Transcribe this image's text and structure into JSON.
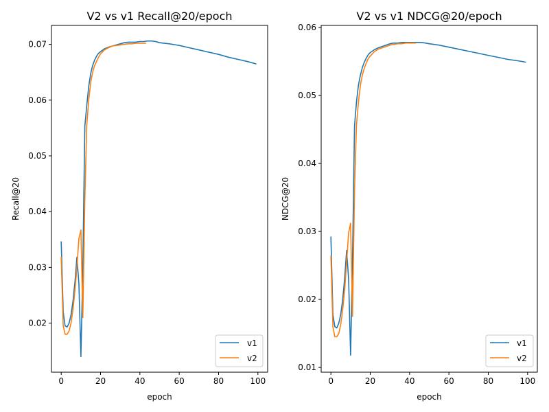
{
  "chart_data": [
    {
      "type": "line",
      "title": "V2 vs v1 Recall@20/epoch",
      "xlabel": "epoch",
      "ylabel": "Recall@20",
      "xlim": [
        -4.95,
        104.95
      ],
      "ylim": [
        0.0112,
        0.0734
      ],
      "xticks": [
        0,
        20,
        40,
        60,
        80,
        100
      ],
      "yticks": [
        0.02,
        0.03,
        0.04,
        0.05,
        0.06,
        0.07
      ],
      "ytick_labels": [
        "0.02",
        "0.03",
        "0.04",
        "0.05",
        "0.06",
        "0.07"
      ],
      "grid": false,
      "legend_position": "lower-right",
      "series": [
        {
          "name": "v1",
          "color": "#1f77b4",
          "x": [
            0,
            1,
            2,
            3,
            4,
            5,
            6,
            7,
            8,
            9,
            10,
            11,
            12,
            13,
            14,
            15,
            16,
            17,
            18,
            19,
            20,
            22,
            24,
            26,
            28,
            30,
            32,
            34,
            36,
            38,
            40,
            42,
            44,
            46,
            48,
            50,
            55,
            60,
            65,
            70,
            75,
            80,
            85,
            90,
            95,
            99
          ],
          "values": [
            0.0346,
            0.022,
            0.0195,
            0.0193,
            0.02,
            0.0215,
            0.024,
            0.0275,
            0.0318,
            0.027,
            0.014,
            0.03,
            0.0553,
            0.059,
            0.0625,
            0.0648,
            0.0662,
            0.0672,
            0.0679,
            0.0684,
            0.0687,
            0.0692,
            0.0695,
            0.0697,
            0.0699,
            0.0701,
            0.0703,
            0.0704,
            0.0704,
            0.0704,
            0.0705,
            0.0705,
            0.0706,
            0.0706,
            0.0705,
            0.0703,
            0.0701,
            0.0698,
            0.0694,
            0.069,
            0.0686,
            0.0682,
            0.0677,
            0.0673,
            0.0669,
            0.0665
          ]
        },
        {
          "name": "v2",
          "color": "#ff7f0e",
          "x": [
            0,
            1,
            2,
            3,
            4,
            5,
            6,
            7,
            8,
            9,
            10,
            11,
            12,
            13,
            14,
            15,
            16,
            17,
            18,
            19,
            20,
            22,
            24,
            26,
            28,
            30,
            32,
            34,
            36,
            38,
            40,
            42,
            43
          ],
          "values": [
            0.0318,
            0.0195,
            0.018,
            0.018,
            0.0186,
            0.02,
            0.0225,
            0.026,
            0.03,
            0.0352,
            0.0367,
            0.021,
            0.042,
            0.0555,
            0.06,
            0.0632,
            0.065,
            0.0662,
            0.067,
            0.0677,
            0.0683,
            0.069,
            0.0694,
            0.0697,
            0.0698,
            0.0699,
            0.07,
            0.0701,
            0.0701,
            0.0702,
            0.0702,
            0.0702,
            0.0702
          ]
        }
      ]
    },
    {
      "type": "line",
      "title": "V2 vs v1 NDCG@20/epoch",
      "xlabel": "epoch",
      "ylabel": "NDCG@20",
      "xlim": [
        -4.95,
        104.95
      ],
      "ylim": [
        0.0093,
        0.0603
      ],
      "xticks": [
        0,
        20,
        40,
        60,
        80,
        100
      ],
      "yticks": [
        0.01,
        0.02,
        0.03,
        0.04,
        0.05,
        0.06
      ],
      "ytick_labels": [
        "0.01",
        "0.02",
        "0.03",
        "0.04",
        "0.05",
        "0.06"
      ],
      "grid": false,
      "legend_position": "lower-right",
      "series": [
        {
          "name": "v1",
          "color": "#1f77b4",
          "x": [
            0,
            1,
            2,
            3,
            4,
            5,
            6,
            7,
            8,
            9,
            10,
            11,
            12,
            13,
            14,
            15,
            16,
            17,
            18,
            19,
            20,
            22,
            24,
            26,
            28,
            30,
            32,
            34,
            36,
            38,
            40,
            42,
            44,
            46,
            48,
            50,
            55,
            60,
            65,
            70,
            75,
            80,
            85,
            90,
            95,
            99
          ],
          "values": [
            0.0292,
            0.0178,
            0.016,
            0.0158,
            0.0165,
            0.0178,
            0.02,
            0.0232,
            0.0272,
            0.023,
            0.0118,
            0.026,
            0.0455,
            0.049,
            0.0515,
            0.053,
            0.0541,
            0.0549,
            0.0555,
            0.056,
            0.0563,
            0.0567,
            0.057,
            0.0572,
            0.0574,
            0.0576,
            0.0577,
            0.0577,
            0.0578,
            0.0578,
            0.0578,
            0.0578,
            0.0578,
            0.0578,
            0.0577,
            0.0576,
            0.0574,
            0.0571,
            0.0568,
            0.0565,
            0.0562,
            0.0559,
            0.0556,
            0.0553,
            0.0551,
            0.0549
          ]
        },
        {
          "name": "v2",
          "color": "#ff7f0e",
          "x": [
            0,
            1,
            2,
            3,
            4,
            5,
            6,
            7,
            8,
            9,
            10,
            11,
            12,
            13,
            14,
            15,
            16,
            17,
            18,
            19,
            20,
            22,
            24,
            26,
            28,
            30,
            32,
            34,
            36,
            38,
            40,
            42,
            43
          ],
          "values": [
            0.0264,
            0.016,
            0.0145,
            0.0145,
            0.015,
            0.0163,
            0.0185,
            0.0215,
            0.0255,
            0.0298,
            0.0312,
            0.0175,
            0.036,
            0.0455,
            0.049,
            0.0515,
            0.053,
            0.054,
            0.0548,
            0.0554,
            0.0558,
            0.0564,
            0.0568,
            0.057,
            0.0572,
            0.0574,
            0.0575,
            0.0576,
            0.0576,
            0.0577,
            0.0577,
            0.0577,
            0.0577
          ]
        }
      ]
    }
  ]
}
